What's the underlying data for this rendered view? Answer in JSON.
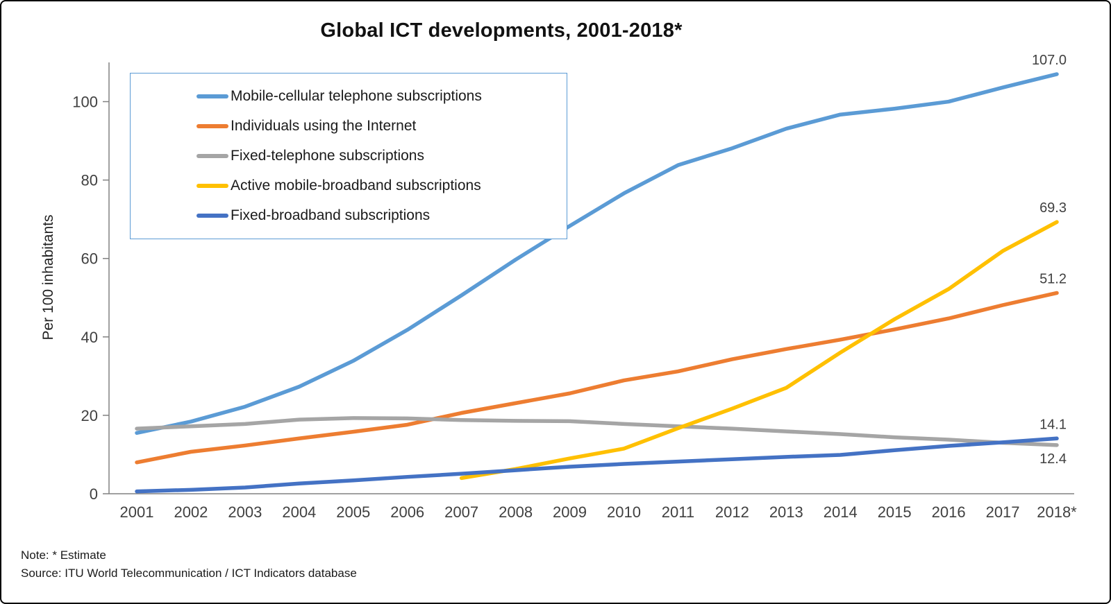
{
  "title": "Global ICT developments, 2001-2018*",
  "ylabel": "Per 100 inhabitants",
  "notes": [
    "Note: * Estimate",
    "Source:  ITU World Telecommunication / ICT Indicators database"
  ],
  "colors": {
    "axis": "#808080",
    "tick_text": "#404040",
    "legend_border": "#5B9BD5"
  },
  "chart_data": {
    "type": "line",
    "title": "Global ICT developments, 2001-2018*",
    "xlabel": "",
    "ylabel": "Per 100 inhabitants",
    "x": [
      "2001",
      "2002",
      "2003",
      "2004",
      "2005",
      "2006",
      "2007",
      "2008",
      "2009",
      "2010",
      "2011",
      "2012",
      "2013",
      "2014",
      "2015",
      "2016",
      "2017",
      "2018*"
    ],
    "ylim": [
      0,
      110
    ],
    "yticks": [
      0,
      20,
      40,
      60,
      80,
      100
    ],
    "grid": false,
    "legend_position": "top-left-inside",
    "series": [
      {
        "name": "Mobile-cellular telephone subscriptions",
        "color": "#5B9BD5",
        "end_label": "107.0",
        "end_label_position": "above",
        "values": [
          15.5,
          18.4,
          22.2,
          27.3,
          33.9,
          41.8,
          50.6,
          59.7,
          68.3,
          76.6,
          83.8,
          88.1,
          93.1,
          96.7,
          98.2,
          100.0,
          103.6,
          107.0
        ]
      },
      {
        "name": "Individuals using the Internet",
        "color": "#ED7D31",
        "end_label": "51.2",
        "end_label_position": "above",
        "values": [
          8.0,
          10.7,
          12.3,
          14.1,
          15.8,
          17.6,
          20.6,
          23.1,
          25.6,
          28.9,
          31.2,
          34.3,
          36.9,
          39.3,
          41.9,
          44.7,
          48.1,
          51.2
        ]
      },
      {
        "name": "Fixed-telephone subscriptions",
        "color": "#A5A5A5",
        "end_label": "12.4",
        "end_label_position": "below",
        "values": [
          16.6,
          17.2,
          17.8,
          18.9,
          19.3,
          19.2,
          18.8,
          18.6,
          18.5,
          17.8,
          17.2,
          16.6,
          15.9,
          15.2,
          14.4,
          13.8,
          13.0,
          12.4
        ]
      },
      {
        "name": "Active mobile-broadband subscriptions",
        "color": "#FFC000",
        "end_label": "69.3",
        "end_label_position": "above",
        "values": [
          null,
          null,
          null,
          null,
          null,
          null,
          4.0,
          6.3,
          9.0,
          11.5,
          16.7,
          21.7,
          27.0,
          36.0,
          44.5,
          52.2,
          61.9,
          69.3
        ]
      },
      {
        "name": "Fixed-broadband subscriptions",
        "color": "#4472C4",
        "end_label": "14.1",
        "end_label_position": "above",
        "values": [
          0.6,
          1.0,
          1.6,
          2.6,
          3.4,
          4.3,
          5.1,
          6.0,
          6.9,
          7.6,
          8.2,
          8.8,
          9.4,
          9.9,
          11.1,
          12.2,
          13.1,
          14.1
        ]
      }
    ]
  }
}
